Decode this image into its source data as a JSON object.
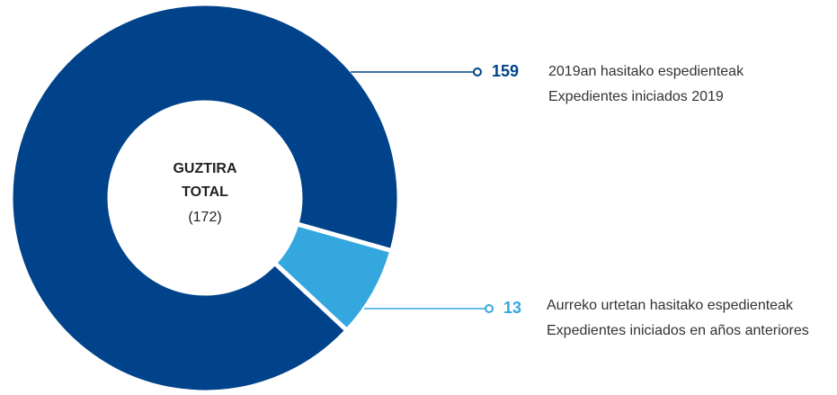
{
  "chart_data": {
    "type": "donut",
    "values": [
      159,
      13
    ],
    "colors": [
      "#00438a",
      "#35a7df"
    ],
    "labels": [
      [
        "2019an hasitako espedienteak",
        "Expedientes iniciados 2019"
      ],
      [
        "Aurreko urtetan  hasitako espedienteak",
        "Expedientes iniciados en años anteriores"
      ]
    ],
    "center_title": [
      "GUZTIRA",
      "TOTAL"
    ],
    "total": {
      "value": 172,
      "label": "(172)"
    }
  }
}
